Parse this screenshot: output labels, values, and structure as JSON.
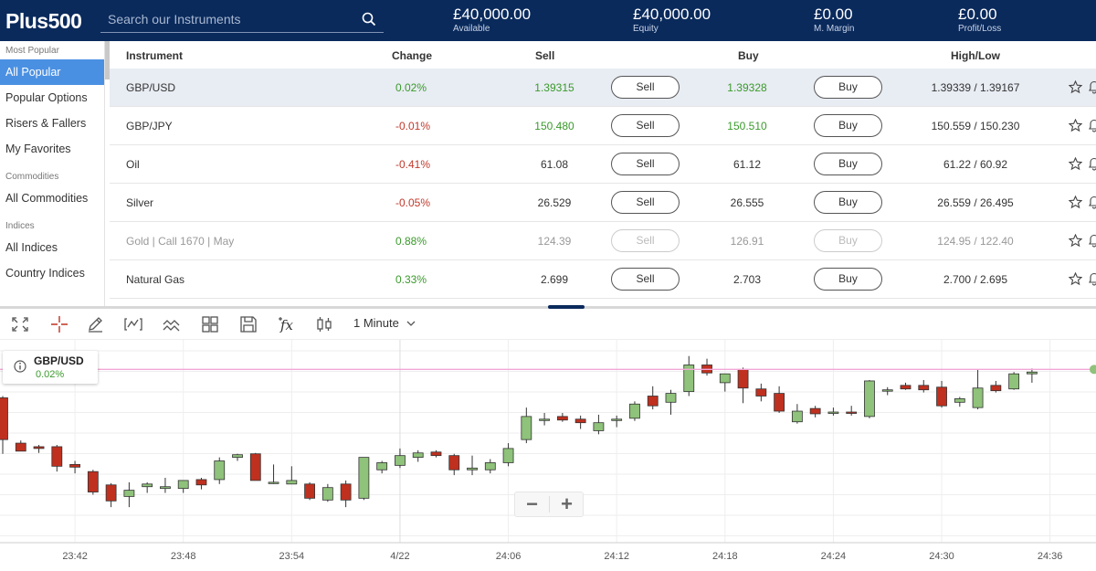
{
  "header": {
    "logo": "Plus500",
    "search_placeholder": "Search our Instruments",
    "stats": [
      {
        "value": "£40,000.00",
        "label": "Available"
      },
      {
        "value": "£40,000.00",
        "label": "Equity"
      },
      {
        "value": "£0.00",
        "label": "M. Margin"
      },
      {
        "value": "£0.00",
        "label": "Profit/Loss"
      }
    ]
  },
  "sidebar": {
    "sections": [
      {
        "heading": "Most Popular",
        "items": [
          "All Popular",
          "Popular Options",
          "Risers & Fallers",
          "My Favorites"
        ]
      },
      {
        "heading": "Commodities",
        "items": [
          "All Commodities"
        ]
      },
      {
        "heading": "Indices",
        "items": [
          "All Indices",
          "Country Indices"
        ]
      }
    ],
    "active": "All Popular"
  },
  "table": {
    "columns": {
      "instrument": "Instrument",
      "change": "Change",
      "sell": "Sell",
      "buy": "Buy",
      "highlow": "High/Low"
    },
    "sell_label": "Sell",
    "buy_label": "Buy",
    "rows": [
      {
        "instrument": "GBP/USD",
        "change": "0.02%",
        "sell": "1.39315",
        "buy": "1.39328",
        "highlow": "1.39339 / 1.39167",
        "direction": "up",
        "sell_color": "pos",
        "buy_color": "pos",
        "selected": true,
        "disabled": false
      },
      {
        "instrument": "GBP/JPY",
        "change": "-0.01%",
        "sell": "150.480",
        "buy": "150.510",
        "highlow": "150.559 / 150.230",
        "direction": "down",
        "sell_color": "pos",
        "buy_color": "pos",
        "selected": false,
        "disabled": false
      },
      {
        "instrument": "Oil",
        "change": "-0.41%",
        "sell": "61.08",
        "buy": "61.12",
        "highlow": "61.22 / 60.92",
        "direction": "down",
        "sell_color": "",
        "buy_color": "",
        "selected": false,
        "disabled": false
      },
      {
        "instrument": "Silver",
        "change": "-0.05%",
        "sell": "26.529",
        "buy": "26.555",
        "highlow": "26.559 / 26.495",
        "direction": "down",
        "sell_color": "",
        "buy_color": "",
        "selected": false,
        "disabled": false
      },
      {
        "instrument": "Gold | Call 1670 | May",
        "change": "0.88%",
        "sell": "124.39",
        "buy": "126.91",
        "highlow": "124.95 / 122.40",
        "direction": "up",
        "sell_color": "",
        "buy_color": "",
        "selected": false,
        "disabled": true
      },
      {
        "instrument": "Natural Gas",
        "change": "0.33%",
        "sell": "2.699",
        "buy": "2.703",
        "highlow": "2.700 / 2.695",
        "direction": "up",
        "sell_color": "",
        "buy_color": "",
        "selected": false,
        "disabled": false
      }
    ]
  },
  "chart_toolbar": {
    "icons": [
      "fullscreen-icon",
      "crosshair-icon",
      "draw-pencil-icon",
      "chart-type-icon",
      "indicators-icon",
      "layouts-icon",
      "save-icon",
      "function-icon",
      "candle-style-icon"
    ],
    "timeframe": "1 Minute"
  },
  "chart_info": {
    "symbol": "GBP/USD",
    "change": "0.02%"
  },
  "colors": {
    "up": "#8fc27a",
    "down": "#c0301f",
    "header": "#0a2a5c",
    "accent": "#4a90e2",
    "price_line": "#f2a6d6"
  },
  "chart_data": {
    "type": "candlestick",
    "x_ticks": [
      "23:42",
      "23:48",
      "23:54",
      "4/22",
      "24:06",
      "24:12",
      "24:18",
      "24:24",
      "24:30",
      "24:36"
    ],
    "tick_start_index": 4,
    "tick_step": 6,
    "ylim": [
      1.3914,
      1.3936
    ],
    "last_price_line": 1.39335,
    "candles": [
      {
        "o": 1.39303,
        "h": 1.39305,
        "l": 1.3924,
        "c": 1.39256
      },
      {
        "o": 1.39252,
        "h": 1.39255,
        "l": 1.39243,
        "c": 1.39243
      },
      {
        "o": 1.39248,
        "h": 1.3925,
        "l": 1.39241,
        "c": 1.39246
      },
      {
        "o": 1.39248,
        "h": 1.3925,
        "l": 1.3922,
        "c": 1.39226
      },
      {
        "o": 1.39228,
        "h": 1.39232,
        "l": 1.39218,
        "c": 1.39225
      },
      {
        "o": 1.3922,
        "h": 1.39222,
        "l": 1.39194,
        "c": 1.39197
      },
      {
        "o": 1.39205,
        "h": 1.39207,
        "l": 1.3918,
        "c": 1.39187
      },
      {
        "o": 1.39192,
        "h": 1.39208,
        "l": 1.3918,
        "c": 1.39199
      },
      {
        "o": 1.39203,
        "h": 1.39208,
        "l": 1.39196,
        "c": 1.39206
      },
      {
        "o": 1.39201,
        "h": 1.39213,
        "l": 1.39196,
        "c": 1.39203
      },
      {
        "o": 1.39201,
        "h": 1.3921,
        "l": 1.39196,
        "c": 1.3921
      },
      {
        "o": 1.39211,
        "h": 1.39213,
        "l": 1.392,
        "c": 1.39205
      },
      {
        "o": 1.39211,
        "h": 1.39236,
        "l": 1.39206,
        "c": 1.39232
      },
      {
        "o": 1.39236,
        "h": 1.3924,
        "l": 1.39232,
        "c": 1.39239
      },
      {
        "o": 1.3924,
        "h": 1.39241,
        "l": 1.3921,
        "c": 1.3921
      },
      {
        "o": 1.39208,
        "h": 1.39228,
        "l": 1.39206,
        "c": 1.39208
      },
      {
        "o": 1.39206,
        "h": 1.39226,
        "l": 1.39206,
        "c": 1.3921
      },
      {
        "o": 1.39206,
        "h": 1.39208,
        "l": 1.39188,
        "c": 1.3919
      },
      {
        "o": 1.39188,
        "h": 1.39206,
        "l": 1.39186,
        "c": 1.39202
      },
      {
        "o": 1.39206,
        "h": 1.3921,
        "l": 1.3918,
        "c": 1.39188
      },
      {
        "o": 1.3919,
        "h": 1.39236,
        "l": 1.39188,
        "c": 1.39236
      },
      {
        "o": 1.39222,
        "h": 1.39232,
        "l": 1.39218,
        "c": 1.3923
      },
      {
        "o": 1.39227,
        "h": 1.39246,
        "l": 1.39224,
        "c": 1.39238
      },
      {
        "o": 1.39236,
        "h": 1.39244,
        "l": 1.39231,
        "c": 1.39241
      },
      {
        "o": 1.39242,
        "h": 1.39244,
        "l": 1.39236,
        "c": 1.39238
      },
      {
        "o": 1.39238,
        "h": 1.3924,
        "l": 1.39216,
        "c": 1.39222
      },
      {
        "o": 1.39222,
        "h": 1.39238,
        "l": 1.39216,
        "c": 1.39224
      },
      {
        "o": 1.39222,
        "h": 1.39234,
        "l": 1.39218,
        "c": 1.3923
      },
      {
        "o": 1.3923,
        "h": 1.39252,
        "l": 1.39226,
        "c": 1.39246
      },
      {
        "o": 1.39256,
        "h": 1.39292,
        "l": 1.39252,
        "c": 1.39282
      },
      {
        "o": 1.39279,
        "h": 1.39286,
        "l": 1.39272,
        "c": 1.39279
      },
      {
        "o": 1.39282,
        "h": 1.39286,
        "l": 1.39276,
        "c": 1.39278
      },
      {
        "o": 1.39279,
        "h": 1.39283,
        "l": 1.39268,
        "c": 1.39275
      },
      {
        "o": 1.39266,
        "h": 1.39284,
        "l": 1.39262,
        "c": 1.39275
      },
      {
        "o": 1.39278,
        "h": 1.39283,
        "l": 1.3927,
        "c": 1.39279
      },
      {
        "o": 1.3928,
        "h": 1.39299,
        "l": 1.39277,
        "c": 1.39296
      },
      {
        "o": 1.39305,
        "h": 1.39316,
        "l": 1.3929,
        "c": 1.39294
      },
      {
        "o": 1.39298,
        "h": 1.39312,
        "l": 1.39284,
        "c": 1.39308
      },
      {
        "o": 1.3931,
        "h": 1.3935,
        "l": 1.39305,
        "c": 1.3934
      },
      {
        "o": 1.3934,
        "h": 1.39347,
        "l": 1.39328,
        "c": 1.39331
      },
      {
        "o": 1.3932,
        "h": 1.3933,
        "l": 1.3931,
        "c": 1.3933
      },
      {
        "o": 1.39335,
        "h": 1.39337,
        "l": 1.39297,
        "c": 1.39314
      },
      {
        "o": 1.39313,
        "h": 1.39319,
        "l": 1.39299,
        "c": 1.39305
      },
      {
        "o": 1.39308,
        "h": 1.39316,
        "l": 1.39286,
        "c": 1.39288
      },
      {
        "o": 1.39276,
        "h": 1.39296,
        "l": 1.39274,
        "c": 1.39288
      },
      {
        "o": 1.39291,
        "h": 1.39294,
        "l": 1.39281,
        "c": 1.39285
      },
      {
        "o": 1.39287,
        "h": 1.39292,
        "l": 1.39283,
        "c": 1.39287
      },
      {
        "o": 1.39287,
        "h": 1.39294,
        "l": 1.39283,
        "c": 1.39286
      },
      {
        "o": 1.39282,
        "h": 1.39323,
        "l": 1.3928,
        "c": 1.39322
      },
      {
        "o": 1.39312,
        "h": 1.39315,
        "l": 1.39306,
        "c": 1.39312
      },
      {
        "o": 1.39317,
        "h": 1.3932,
        "l": 1.39312,
        "c": 1.39313
      },
      {
        "o": 1.39317,
        "h": 1.39323,
        "l": 1.39309,
        "c": 1.39312
      },
      {
        "o": 1.39315,
        "h": 1.39322,
        "l": 1.39292,
        "c": 1.39294
      },
      {
        "o": 1.39298,
        "h": 1.39304,
        "l": 1.39293,
        "c": 1.39302
      },
      {
        "o": 1.39292,
        "h": 1.39335,
        "l": 1.3929,
        "c": 1.39314
      },
      {
        "o": 1.39317,
        "h": 1.39322,
        "l": 1.39309,
        "c": 1.39311
      },
      {
        "o": 1.39313,
        "h": 1.39332,
        "l": 1.39312,
        "c": 1.3933
      },
      {
        "o": 1.3933,
        "h": 1.39336,
        "l": 1.3932,
        "c": 1.39332
      }
    ]
  }
}
